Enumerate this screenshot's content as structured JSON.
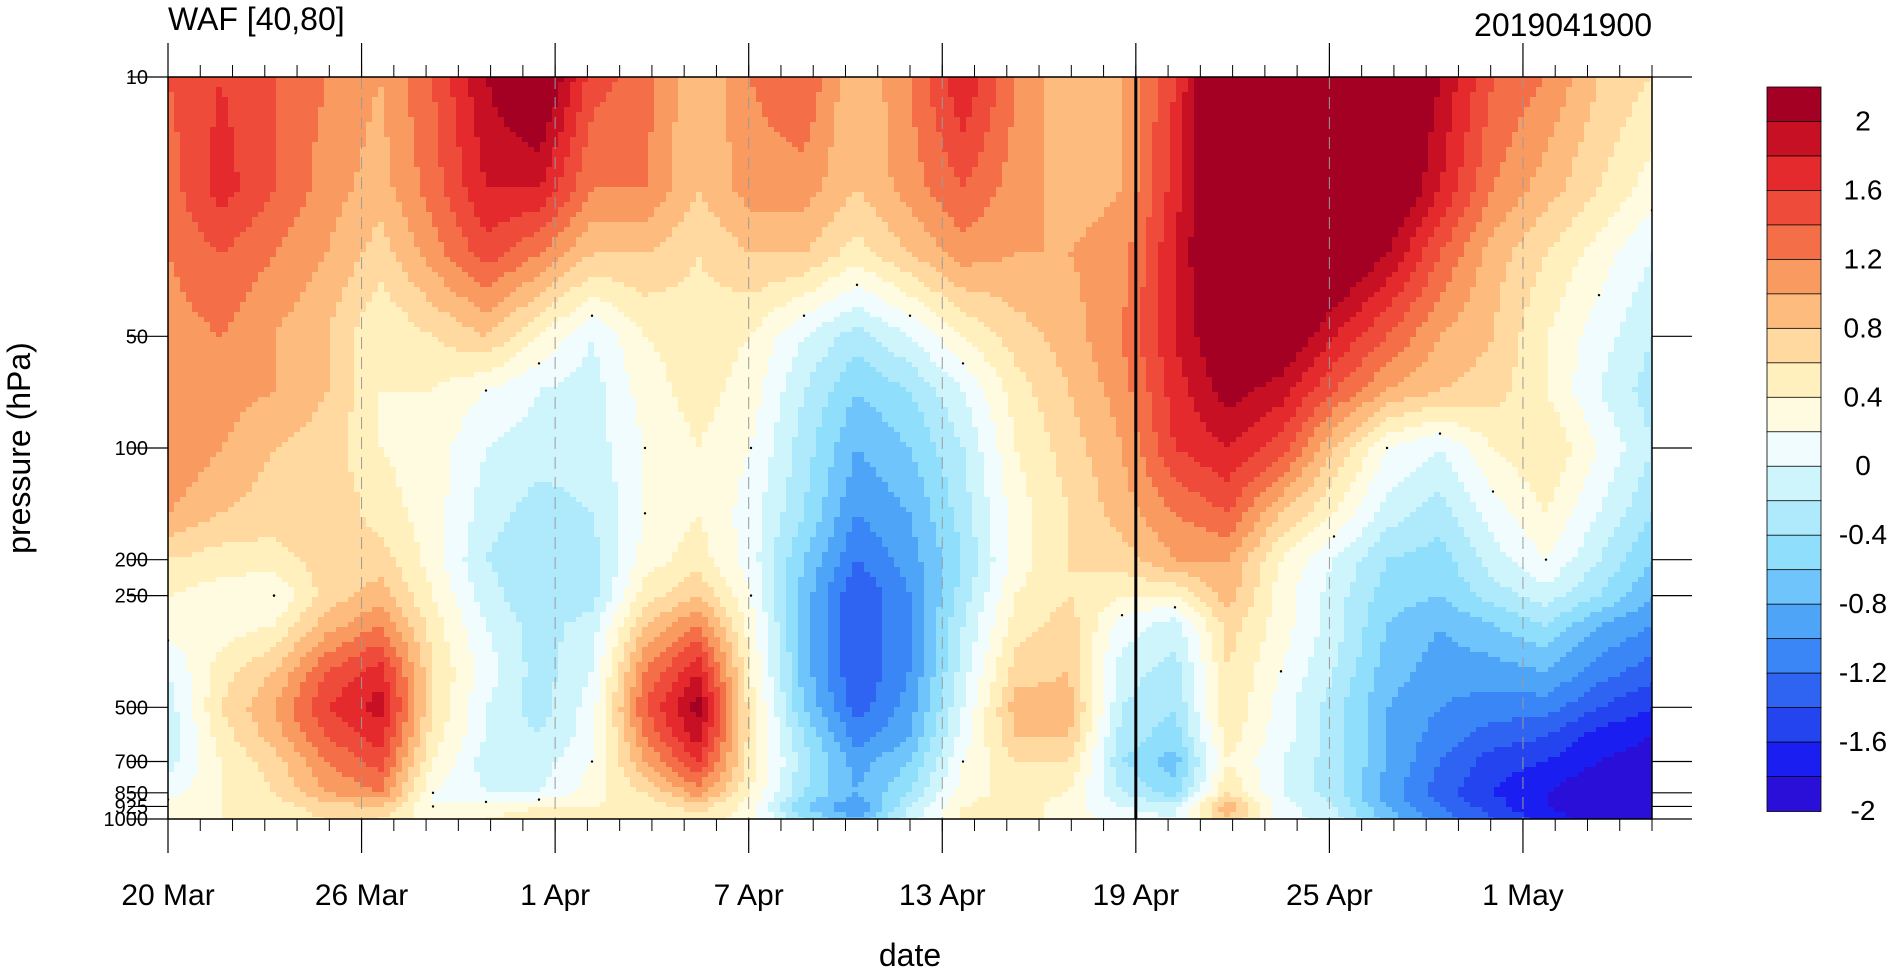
{
  "chart_data": {
    "type": "heatmap",
    "title_left": "WAF [40,80]",
    "title_right": "2019041900",
    "xlabel": "date",
    "ylabel": "pressure (hPa)",
    "y_scale": "log",
    "y_reversed": true,
    "ylim": [
      1000,
      10
    ],
    "y_ticks": [
      {
        "value": 10,
        "label": "10"
      },
      {
        "value": 50,
        "label": "50"
      },
      {
        "value": 100,
        "label": "100"
      },
      {
        "value": 200,
        "label": "200"
      },
      {
        "value": 250,
        "label": "250"
      },
      {
        "value": 500,
        "label": "500"
      },
      {
        "value": 700,
        "label": "700"
      },
      {
        "value": 850,
        "label": "850"
      },
      {
        "value": 925,
        "label": "925"
      },
      {
        "value": 1000,
        "label": "1000"
      }
    ],
    "x_ticks": [
      {
        "date": "2019-03-20",
        "label": "20 Mar"
      },
      {
        "date": "2019-03-26",
        "label": "26 Mar"
      },
      {
        "date": "2019-04-01",
        "label": "1 Apr"
      },
      {
        "date": "2019-04-07",
        "label": "7 Apr"
      },
      {
        "date": "2019-04-13",
        "label": "13 Apr"
      },
      {
        "date": "2019-04-19",
        "label": "19 Apr"
      },
      {
        "date": "2019-04-25",
        "label": "25 Apr"
      },
      {
        "date": "2019-05-01",
        "label": "1 May"
      }
    ],
    "x_range": [
      "2019-03-20",
      "2019-05-05"
    ],
    "analysis_date_line": "2019-04-19",
    "colorbar": {
      "levels": [
        -2.2,
        -2.0,
        -1.8,
        -1.6,
        -1.4,
        -1.2,
        -1.0,
        -0.8,
        -0.6,
        -0.4,
        -0.2,
        0,
        0.2,
        0.4,
        0.6,
        0.8,
        1.0,
        1.2,
        1.4,
        1.6,
        1.8,
        2.0,
        2.2
      ],
      "colors": [
        "#2a0fd8",
        "#1a1ef0",
        "#2444f0",
        "#2f63f2",
        "#3a86f7",
        "#4ea4f7",
        "#6fc4fb",
        "#8edefc",
        "#aeeafc",
        "#cff5fc",
        "#f0fcfe",
        "#fffbe0",
        "#fff0bd",
        "#ffd9a0",
        "#fdbc7e",
        "#f99a60",
        "#f46f47",
        "#ee4b3a",
        "#e52a2d",
        "#c81024",
        "#a40023"
      ],
      "tick_labels": [
        "2",
        "1.6",
        "1.2",
        "0.8",
        "0.4",
        "0",
        "-0.4",
        "-0.8",
        "-1.2",
        "-1.6",
        "-2"
      ]
    },
    "grid": {
      "pressure": [
        10,
        20,
        30,
        50,
        70,
        100,
        150,
        200,
        250,
        300,
        400,
        500,
        600,
        700,
        850,
        925,
        1000
      ],
      "rows": [
        [
          1.2,
          1.4,
          1.2,
          1.0,
          0.8,
          1.2,
          1.8,
          2.2,
          1.3,
          1.1,
          0.6,
          1.0,
          1.2,
          0.6,
          1.0,
          1.6,
          1.0,
          0.6,
          0.8,
          1.4,
          2.4,
          2.6,
          2.5,
          2.4,
          1.8,
          1.2,
          1.0,
          0.6,
          0.4
        ],
        [
          1.1,
          1.5,
          1.2,
          0.9,
          0.7,
          1.1,
          1.6,
          1.6,
          1.0,
          1.0,
          0.6,
          0.9,
          0.9,
          0.6,
          0.9,
          1.2,
          0.9,
          0.7,
          0.8,
          1.5,
          2.4,
          2.5,
          2.4,
          2.2,
          1.6,
          1.0,
          0.7,
          0.4,
          0.1
        ],
        [
          1.0,
          1.2,
          1.0,
          0.8,
          0.5,
          0.9,
          1.3,
          1.0,
          0.6,
          0.6,
          0.4,
          0.6,
          0.6,
          0.3,
          0.6,
          0.9,
          0.8,
          0.8,
          0.9,
          1.6,
          2.3,
          2.4,
          2.2,
          1.8,
          1.2,
          0.7,
          0.4,
          0.1,
          -0.2
        ],
        [
          0.9,
          1.0,
          0.8,
          0.6,
          0.2,
          0.4,
          0.6,
          0.2,
          -0.2,
          0.2,
          0.3,
          0.2,
          -0.2,
          -0.5,
          -0.2,
          0.2,
          0.5,
          0.7,
          1.0,
          1.6,
          2.1,
          2.1,
          1.6,
          1.2,
          0.8,
          0.6,
          0.2,
          -0.1,
          -0.4
        ],
        [
          1.0,
          0.9,
          0.8,
          0.6,
          0.2,
          0.2,
          0.0,
          -0.2,
          -0.3,
          0.1,
          0.3,
          0.1,
          -0.4,
          -0.8,
          -0.6,
          -0.2,
          0.3,
          0.6,
          0.9,
          1.5,
          1.9,
          1.7,
          1.2,
          0.8,
          0.6,
          0.5,
          0.2,
          -0.2,
          -0.5
        ],
        [
          1.0,
          0.8,
          0.6,
          0.5,
          0.2,
          0.1,
          -0.2,
          -0.3,
          -0.3,
          0.0,
          0.2,
          0.0,
          -0.5,
          -1.0,
          -0.8,
          -0.4,
          0.2,
          0.5,
          0.8,
          1.4,
          1.6,
          1.3,
          0.6,
          0.0,
          -0.2,
          0.2,
          0.4,
          0.0,
          -0.4
        ],
        [
          0.8,
          0.6,
          0.5,
          0.6,
          0.3,
          0.1,
          -0.3,
          -0.5,
          -0.4,
          0.0,
          0.2,
          -0.1,
          -0.6,
          -1.2,
          -1.0,
          -0.5,
          0.1,
          0.4,
          0.7,
          1.0,
          1.2,
          0.6,
          0.2,
          -0.3,
          -0.5,
          -0.1,
          0.2,
          -0.2,
          -0.6
        ],
        [
          0.4,
          0.3,
          0.3,
          0.5,
          0.5,
          0.1,
          -0.4,
          -0.6,
          -0.5,
          0.1,
          0.3,
          -0.1,
          -0.8,
          -1.4,
          -1.1,
          -0.6,
          0.1,
          0.4,
          0.5,
          0.8,
          0.8,
          0.2,
          -0.2,
          -0.6,
          -0.7,
          -0.3,
          0.0,
          -0.4,
          -0.8
        ],
        [
          0.2,
          0.1,
          0.0,
          0.5,
          0.7,
          0.2,
          -0.3,
          -0.6,
          -0.5,
          0.3,
          0.6,
          0.0,
          -0.9,
          -1.6,
          -1.2,
          -0.5,
          0.2,
          0.4,
          0.2,
          0.2,
          0.7,
          0.1,
          -0.3,
          -0.7,
          -0.8,
          -0.5,
          -0.3,
          -0.6,
          -1.0
        ],
        [
          0.1,
          0.1,
          0.2,
          0.7,
          1.0,
          0.3,
          -0.2,
          -0.5,
          -0.3,
          0.6,
          1.0,
          0.1,
          -0.9,
          -1.6,
          -1.2,
          -0.4,
          0.3,
          0.5,
          -0.1,
          -0.3,
          0.5,
          0.1,
          -0.3,
          -0.8,
          -1.0,
          -0.8,
          -0.6,
          -1.0,
          -1.2
        ],
        [
          -0.2,
          0.3,
          0.6,
          1.2,
          1.5,
          0.4,
          -0.1,
          -0.5,
          -0.2,
          1.0,
          1.6,
          0.2,
          -0.9,
          -1.6,
          -1.2,
          -0.3,
          0.5,
          0.6,
          -0.3,
          -0.5,
          0.4,
          0.0,
          -0.4,
          -0.9,
          -1.1,
          -1.1,
          -1.0,
          -1.3,
          -1.5
        ],
        [
          -0.3,
          0.4,
          0.8,
          1.4,
          1.7,
          0.4,
          -0.2,
          -0.5,
          -0.1,
          1.2,
          1.9,
          0.3,
          -0.8,
          -1.5,
          -1.1,
          -0.2,
          0.7,
          0.7,
          -0.4,
          -0.6,
          0.4,
          -0.1,
          -0.5,
          -1.0,
          -1.2,
          -1.3,
          -1.3,
          -1.6,
          -1.8
        ],
        [
          -0.4,
          0.3,
          0.7,
          1.2,
          1.5,
          0.3,
          -0.2,
          -0.4,
          -0.1,
          1.0,
          1.7,
          0.3,
          -0.6,
          -1.3,
          -1.0,
          -0.1,
          0.6,
          0.6,
          -0.5,
          -0.7,
          0.3,
          -0.1,
          -0.5,
          -1.0,
          -1.3,
          -1.5,
          -1.6,
          -1.9,
          -2.0
        ],
        [
          -0.3,
          0.2,
          0.5,
          1.0,
          1.3,
          0.2,
          -0.3,
          -0.3,
          0.0,
          0.8,
          1.4,
          0.3,
          -0.5,
          -1.1,
          -0.8,
          0.0,
          0.4,
          0.4,
          -0.6,
          -0.9,
          0.2,
          -0.2,
          -0.5,
          -1.0,
          -1.4,
          -1.7,
          -1.8,
          -2.0,
          -2.1
        ],
        [
          -0.1,
          0.2,
          0.4,
          0.8,
          1.0,
          0.0,
          -0.2,
          -0.2,
          0.1,
          0.4,
          0.9,
          0.2,
          -0.6,
          -1.0,
          -0.6,
          0.1,
          0.3,
          0.2,
          -0.4,
          -0.7,
          0.4,
          -0.2,
          -0.5,
          -1.1,
          -1.5,
          -1.8,
          -2.0,
          -2.2,
          -2.2
        ],
        [
          0.1,
          0.2,
          0.3,
          0.5,
          0.6,
          0.0,
          0.1,
          0.2,
          0.2,
          0.3,
          0.5,
          0.1,
          -0.8,
          -1.2,
          -0.4,
          0.2,
          0.3,
          0.1,
          -0.2,
          -0.3,
          0.8,
          -0.1,
          -0.4,
          -1.0,
          -1.4,
          -1.7,
          -2.0,
          -2.2,
          -2.2
        ],
        [
          0.1,
          0.2,
          0.3,
          0.4,
          0.4,
          0.1,
          0.2,
          0.3,
          0.2,
          0.2,
          0.3,
          0.1,
          -0.6,
          -1.0,
          -0.3,
          0.2,
          0.3,
          0.1,
          -0.1,
          -0.2,
          0.6,
          -0.1,
          -0.3,
          -0.9,
          -1.3,
          -1.6,
          -1.9,
          -2.1,
          -2.1
        ]
      ]
    }
  }
}
